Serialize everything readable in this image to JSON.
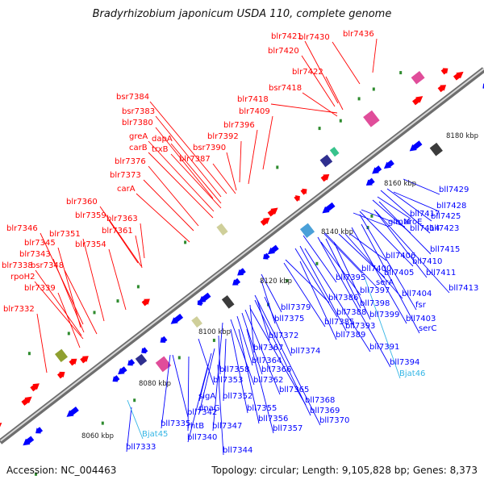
{
  "title": "Bradyrhizobium japonicum USDA 110, complete genome",
  "accession": "Accession: NC_004463",
  "summary": "Topology: circular; Length: 9,105,828 bp; Genes: 8,373",
  "colors": {
    "forward": "#ff0000",
    "reverse": "#0000ff",
    "rna": "#33b5e5",
    "backbone": "#888888"
  },
  "scale_labels": [
    "8060 kbp",
    "8080 kbp",
    "8100 kbp",
    "8120 kbp",
    "8140 kbp",
    "8160 kbp",
    "8180 kbp"
  ],
  "forward_genes": [
    "blr7332",
    "bsr7348",
    "blr7339",
    "rpoH2",
    "blr7338",
    "blr7343",
    "blr7345",
    "blr7346",
    "blr7351",
    "blr7354",
    "blr7361",
    "blr7359",
    "blr7360",
    "blr7363",
    "carA",
    "blr7373",
    "blr7376",
    "carB",
    "greA",
    "trxB",
    "dapA",
    "blr7380",
    "bsr7383",
    "bsr7384",
    "blr7387",
    "bsr7390",
    "blr7392",
    "blr7396",
    "blr7409",
    "blr7418",
    "bsr7418",
    "blr7422",
    "blr7420",
    "blr7421",
    "blr7430",
    "blr7436"
  ],
  "reverse_genes": [
    "bll7333",
    "bll7335",
    "rhtB",
    "bll7340",
    "bll7342",
    "bll7344",
    "bll7347",
    "sigA",
    "bll7352",
    "dnaG",
    "bll7355",
    "bll7356",
    "bll7357",
    "bll7353",
    "bll7358",
    "bll7362",
    "bll7364",
    "bll7366",
    "bll7365",
    "bll7367",
    "bll7368",
    "bll7369",
    "bll7370",
    "bll7372",
    "bll7374",
    "bll7375",
    "bll7379",
    "bll7385",
    "bll7386",
    "bll7388",
    "bll7389",
    "bll7391",
    "bll7393",
    "bll7394",
    "bll7395",
    "bll7397",
    "bll7398",
    "bll7399",
    "bll7400",
    "serA",
    "bll7405",
    "bll7403",
    "bll7404",
    "serC",
    "fsr",
    "bll7406",
    "glmM",
    "aroE",
    "bll7410",
    "bll7411",
    "bll7413",
    "bll7414",
    "bll7415",
    "bll7417",
    "bll7423",
    "bll7425",
    "bll7428",
    "bll7429"
  ],
  "rna_genes": [
    "Bjat45",
    "Bjat46"
  ]
}
